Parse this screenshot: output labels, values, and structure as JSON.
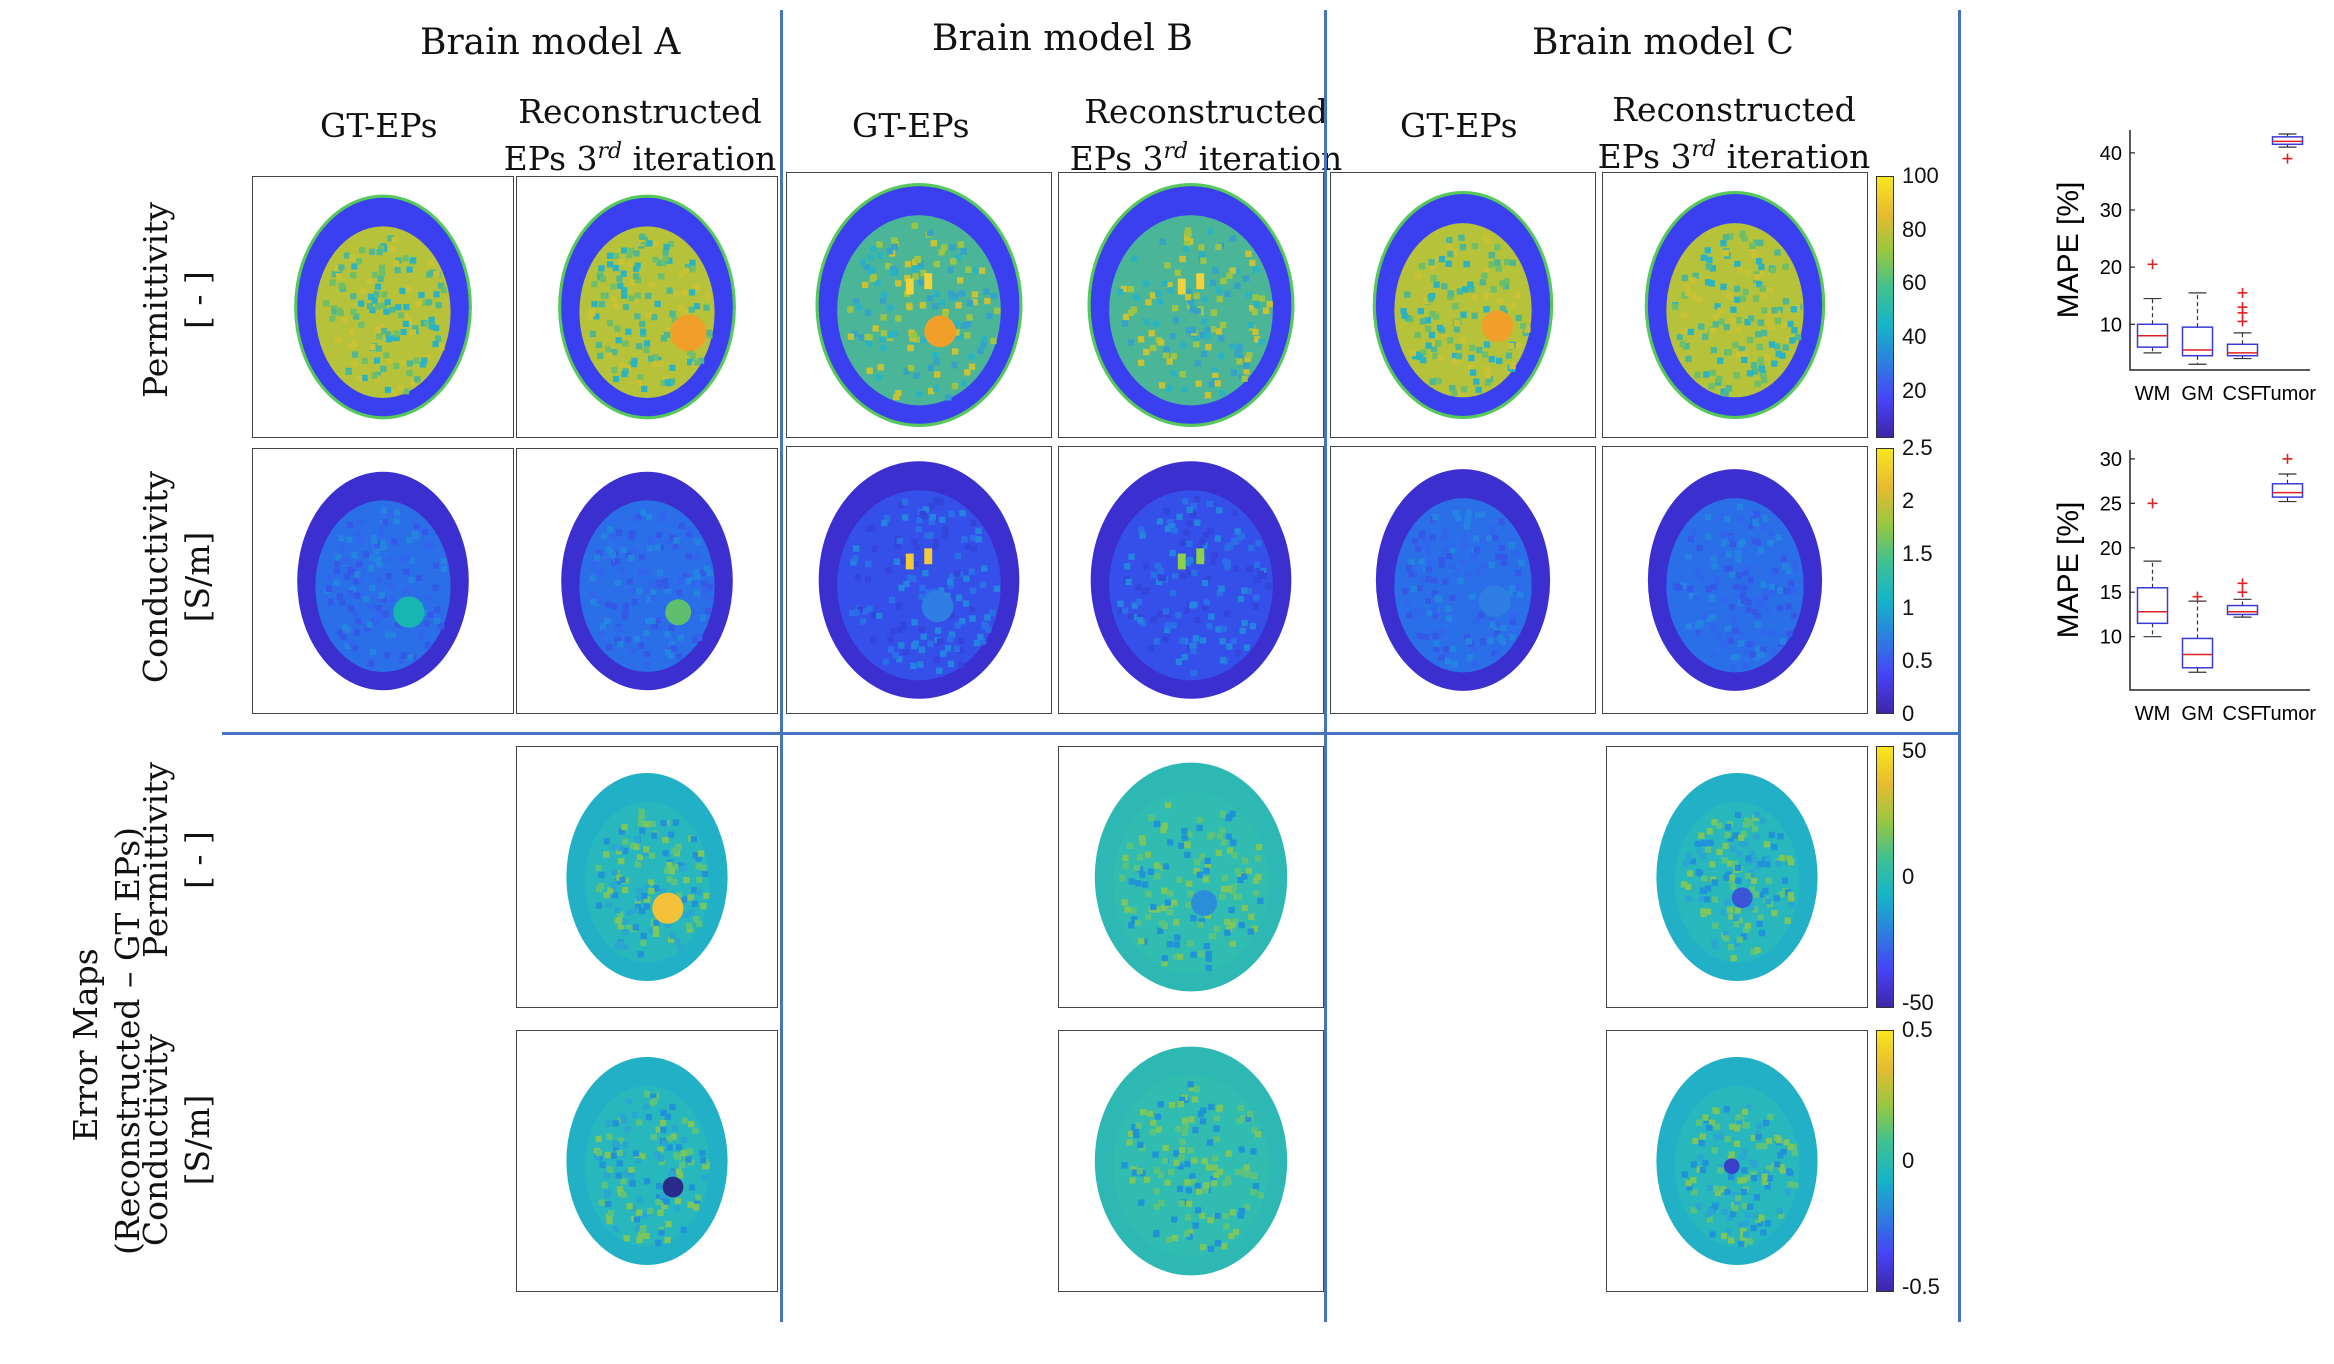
{
  "headers": {
    "model_a": "Brain model A",
    "model_b": "Brain model B",
    "model_c": "Brain model C"
  },
  "subheaders": {
    "gt": "GT-EPs",
    "recon_line1": "Reconstructed",
    "recon_line2_pre": "EPs 3",
    "recon_sup": "rd",
    "recon_line2_post": " iteration"
  },
  "row_labels": {
    "permittivity": "Permittivity",
    "permittivity_unit": "[ - ]",
    "conductivity": "Conductivity",
    "conductivity_unit": "[S/m]",
    "error_maps_line1": "Error Maps",
    "error_maps_line2": "(Reconstructed – GT EPs)"
  },
  "colorbars": {
    "permittivity": [
      "100",
      "80",
      "60",
      "40",
      "20"
    ],
    "conductivity": [
      "2.5",
      "2",
      "1.5",
      "1",
      "0.5",
      "0"
    ],
    "error_permittivity": [
      "50",
      "0",
      "-50"
    ],
    "error_conductivity": [
      "0.5",
      "0",
      "-0.5"
    ]
  },
  "chart_data": [
    {
      "type": "box",
      "ylabel": "MAPE [%]",
      "categories": [
        "WM",
        "GM",
        "CSF",
        "Tumor"
      ],
      "yticks": [
        "40",
        "30",
        "20",
        "10"
      ],
      "ylim": [
        2,
        44
      ],
      "boxes": [
        {
          "category": "WM",
          "whisker_low": 5,
          "q1": 6,
          "median": 8,
          "q3": 10,
          "whisker_high": 14.5,
          "outliers": [
            20.5
          ]
        },
        {
          "category": "GM",
          "whisker_low": 3,
          "q1": 4.5,
          "median": 5.5,
          "q3": 9.5,
          "whisker_high": 15.5,
          "outliers": []
        },
        {
          "category": "CSF",
          "whisker_low": 4,
          "q1": 4.5,
          "median": 5,
          "q3": 6.5,
          "whisker_high": 8.5,
          "outliers": [
            10.5,
            12,
            13,
            15.5
          ]
        },
        {
          "category": "Tumor",
          "whisker_low": 41,
          "q1": 41.5,
          "median": 42,
          "q3": 42.8,
          "whisker_high": 43.3,
          "outliers": [
            39
          ]
        }
      ]
    },
    {
      "type": "box",
      "ylabel": "MAPE [%]",
      "categories": [
        "WM",
        "GM",
        "CSF",
        "Tumor"
      ],
      "yticks": [
        "30",
        "25",
        "20",
        "15",
        "10"
      ],
      "ylim": [
        4,
        31
      ],
      "boxes": [
        {
          "category": "WM",
          "whisker_low": 10,
          "q1": 11.5,
          "median": 12.8,
          "q3": 15.5,
          "whisker_high": 18.5,
          "outliers": [
            25
          ]
        },
        {
          "category": "GM",
          "whisker_low": 6,
          "q1": 6.5,
          "median": 8,
          "q3": 9.8,
          "whisker_high": 14,
          "outliers": [
            14.5
          ]
        },
        {
          "category": "CSF",
          "whisker_low": 12.2,
          "q1": 12.5,
          "median": 12.8,
          "q3": 13.5,
          "whisker_high": 14.2,
          "outliers": [
            15,
            16
          ]
        },
        {
          "category": "Tumor",
          "whisker_low": 25.2,
          "q1": 25.7,
          "median": 26.2,
          "q3": 27.2,
          "whisker_high": 28.3,
          "outliers": [
            30
          ]
        }
      ]
    }
  ]
}
